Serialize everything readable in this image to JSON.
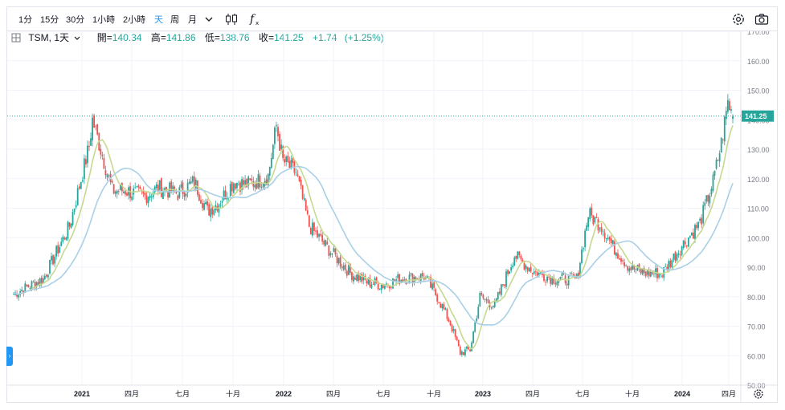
{
  "toolbar": {
    "timeframes": [
      "1分",
      "15分",
      "30分",
      "1小時",
      "2小時",
      "天",
      "周",
      "月"
    ],
    "active_timeframe": "天",
    "icons": [
      "chevron-down-icon",
      "candlestick-icon",
      "function-icon",
      "settings-icon",
      "camera-icon"
    ]
  },
  "legend": {
    "symbol": "TSM, 1天",
    "open_label": "開",
    "open": "140.34",
    "high_label": "高",
    "high": "141.86",
    "low_label": "低",
    "low": "138.76",
    "close_label": "收",
    "close": "141.25",
    "change": "+1.74",
    "change_pct": "(+1.25%)"
  },
  "price_axis": {
    "ticks": [
      "170.00",
      "160.00",
      "150.00",
      "140.00",
      "130.00",
      "120.00",
      "110.00",
      "100.00",
      "90.00",
      "80.00",
      "70.00",
      "60.00",
      "50.00"
    ],
    "last_price": "141.25"
  },
  "time_axis": {
    "labels": [
      "2021",
      "四月",
      "七月",
      "十月",
      "2022",
      "四月",
      "七月",
      "十月",
      "2023",
      "四月",
      "七月",
      "十月",
      "2024",
      "四月"
    ]
  },
  "colors": {
    "up": "#26a69a",
    "down": "#ef5350",
    "ma_fast": "#c5d990",
    "ma_slow": "#a9d0e6",
    "accent": "#2196f3"
  },
  "chart_data": {
    "type": "candlestick",
    "title": "TSM, 1天",
    "interval": "1 day",
    "ylim": [
      50,
      170
    ],
    "x_start": "2020-11",
    "x_end": "2024-04",
    "anchors": [
      [
        0,
        81
      ],
      [
        18,
        86
      ],
      [
        34,
        104
      ],
      [
        46,
        131
      ],
      [
        48,
        140
      ],
      [
        52,
        132
      ],
      [
        60,
        116
      ],
      [
        68,
        116
      ],
      [
        80,
        114
      ],
      [
        88,
        117
      ],
      [
        100,
        115
      ],
      [
        110,
        119
      ],
      [
        118,
        109
      ],
      [
        125,
        112
      ],
      [
        134,
        119
      ],
      [
        142,
        118
      ],
      [
        148,
        119
      ],
      [
        155,
        121
      ],
      [
        160,
        138
      ],
      [
        164,
        126
      ],
      [
        172,
        122
      ],
      [
        180,
        104
      ],
      [
        192,
        96
      ],
      [
        205,
        88
      ],
      [
        215,
        85
      ],
      [
        225,
        84
      ],
      [
        235,
        86
      ],
      [
        250,
        87
      ],
      [
        258,
        80
      ],
      [
        266,
        71
      ],
      [
        272,
        61
      ],
      [
        278,
        62
      ],
      [
        284,
        80
      ],
      [
        293,
        77
      ],
      [
        305,
        94
      ],
      [
        318,
        88
      ],
      [
        330,
        86
      ],
      [
        343,
        86
      ],
      [
        350,
        108
      ],
      [
        358,
        104
      ],
      [
        365,
        97
      ],
      [
        375,
        90
      ],
      [
        385,
        88
      ],
      [
        395,
        88
      ],
      [
        408,
        98
      ],
      [
        418,
        105
      ],
      [
        426,
        119
      ],
      [
        431,
        132
      ],
      [
        435,
        146
      ],
      [
        438,
        141
      ]
    ],
    "last": {
      "open": 140.34,
      "high": 141.86,
      "low": 138.76,
      "close": 141.25,
      "change": 1.74,
      "change_pct": 1.25
    }
  }
}
